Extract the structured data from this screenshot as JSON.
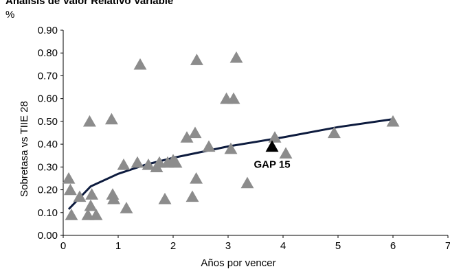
{
  "chart_data": {
    "type": "scatter",
    "title": "Análisis de Valor Relativo Variable",
    "unit_label": "%",
    "xlabel": "Años por vencer",
    "ylabel": "Sobretasa vs TIIE 28",
    "xlim": [
      0,
      7
    ],
    "ylim": [
      0,
      0.9
    ],
    "x_ticks": [
      "0",
      "1",
      "2",
      "3",
      "4",
      "5",
      "6",
      "7"
    ],
    "y_ticks": [
      "0.00",
      "0.10",
      "0.20",
      "0.30",
      "0.40",
      "0.50",
      "0.60",
      "0.70",
      "0.80",
      "0.90"
    ],
    "grid": false,
    "colors": {
      "points": "#8c8c8c",
      "highlight": "#000000",
      "trend": "#0d1b3e"
    },
    "series": [
      {
        "points": [
          {
            "x": 0.1,
            "y": 0.25
          },
          {
            "x": 0.13,
            "y": 0.2
          },
          {
            "x": 0.15,
            "y": 0.09
          },
          {
            "x": 0.3,
            "y": 0.17
          },
          {
            "x": 0.45,
            "y": 0.09
          },
          {
            "x": 0.48,
            "y": 0.5
          },
          {
            "x": 0.5,
            "y": 0.13
          },
          {
            "x": 0.52,
            "y": 0.18
          },
          {
            "x": 0.6,
            "y": 0.09
          },
          {
            "x": 0.88,
            "y": 0.51
          },
          {
            "x": 0.9,
            "y": 0.18
          },
          {
            "x": 0.92,
            "y": 0.16
          },
          {
            "x": 1.1,
            "y": 0.31
          },
          {
            "x": 1.15,
            "y": 0.12
          },
          {
            "x": 1.35,
            "y": 0.32
          },
          {
            "x": 1.4,
            "y": 0.75
          },
          {
            "x": 1.55,
            "y": 0.31
          },
          {
            "x": 1.7,
            "y": 0.3
          },
          {
            "x": 1.75,
            "y": 0.32
          },
          {
            "x": 1.85,
            "y": 0.16
          },
          {
            "x": 1.9,
            "y": 0.32
          },
          {
            "x": 2.0,
            "y": 0.33
          },
          {
            "x": 2.05,
            "y": 0.32
          },
          {
            "x": 2.25,
            "y": 0.43
          },
          {
            "x": 2.35,
            "y": 0.17
          },
          {
            "x": 2.4,
            "y": 0.45
          },
          {
            "x": 2.42,
            "y": 0.25
          },
          {
            "x": 2.43,
            "y": 0.77
          },
          {
            "x": 2.65,
            "y": 0.39
          },
          {
            "x": 2.97,
            "y": 0.6
          },
          {
            "x": 3.05,
            "y": 0.38
          },
          {
            "x": 3.1,
            "y": 0.6
          },
          {
            "x": 3.15,
            "y": 0.78
          },
          {
            "x": 3.35,
            "y": 0.23
          },
          {
            "x": 3.85,
            "y": 0.43
          },
          {
            "x": 4.05,
            "y": 0.36
          },
          {
            "x": 4.93,
            "y": 0.45
          },
          {
            "x": 6.0,
            "y": 0.5
          }
        ]
      },
      {
        "highlight": true,
        "points": [
          {
            "x": 3.8,
            "y": 0.39
          }
        ]
      }
    ],
    "trendline": {
      "type": "power",
      "x_range": [
        0.1,
        6.0
      ],
      "points": [
        {
          "x": 0.1,
          "y": 0.115
        },
        {
          "x": 0.5,
          "y": 0.215
        },
        {
          "x": 1.0,
          "y": 0.27
        },
        {
          "x": 1.5,
          "y": 0.31
        },
        {
          "x": 2.0,
          "y": 0.34
        },
        {
          "x": 3.0,
          "y": 0.39
        },
        {
          "x": 4.0,
          "y": 0.43
        },
        {
          "x": 5.0,
          "y": 0.475
        },
        {
          "x": 6.0,
          "y": 0.51
        }
      ]
    },
    "annotations": [
      {
        "text": "GAP 15",
        "x": 3.8,
        "y": 0.39
      }
    ]
  }
}
